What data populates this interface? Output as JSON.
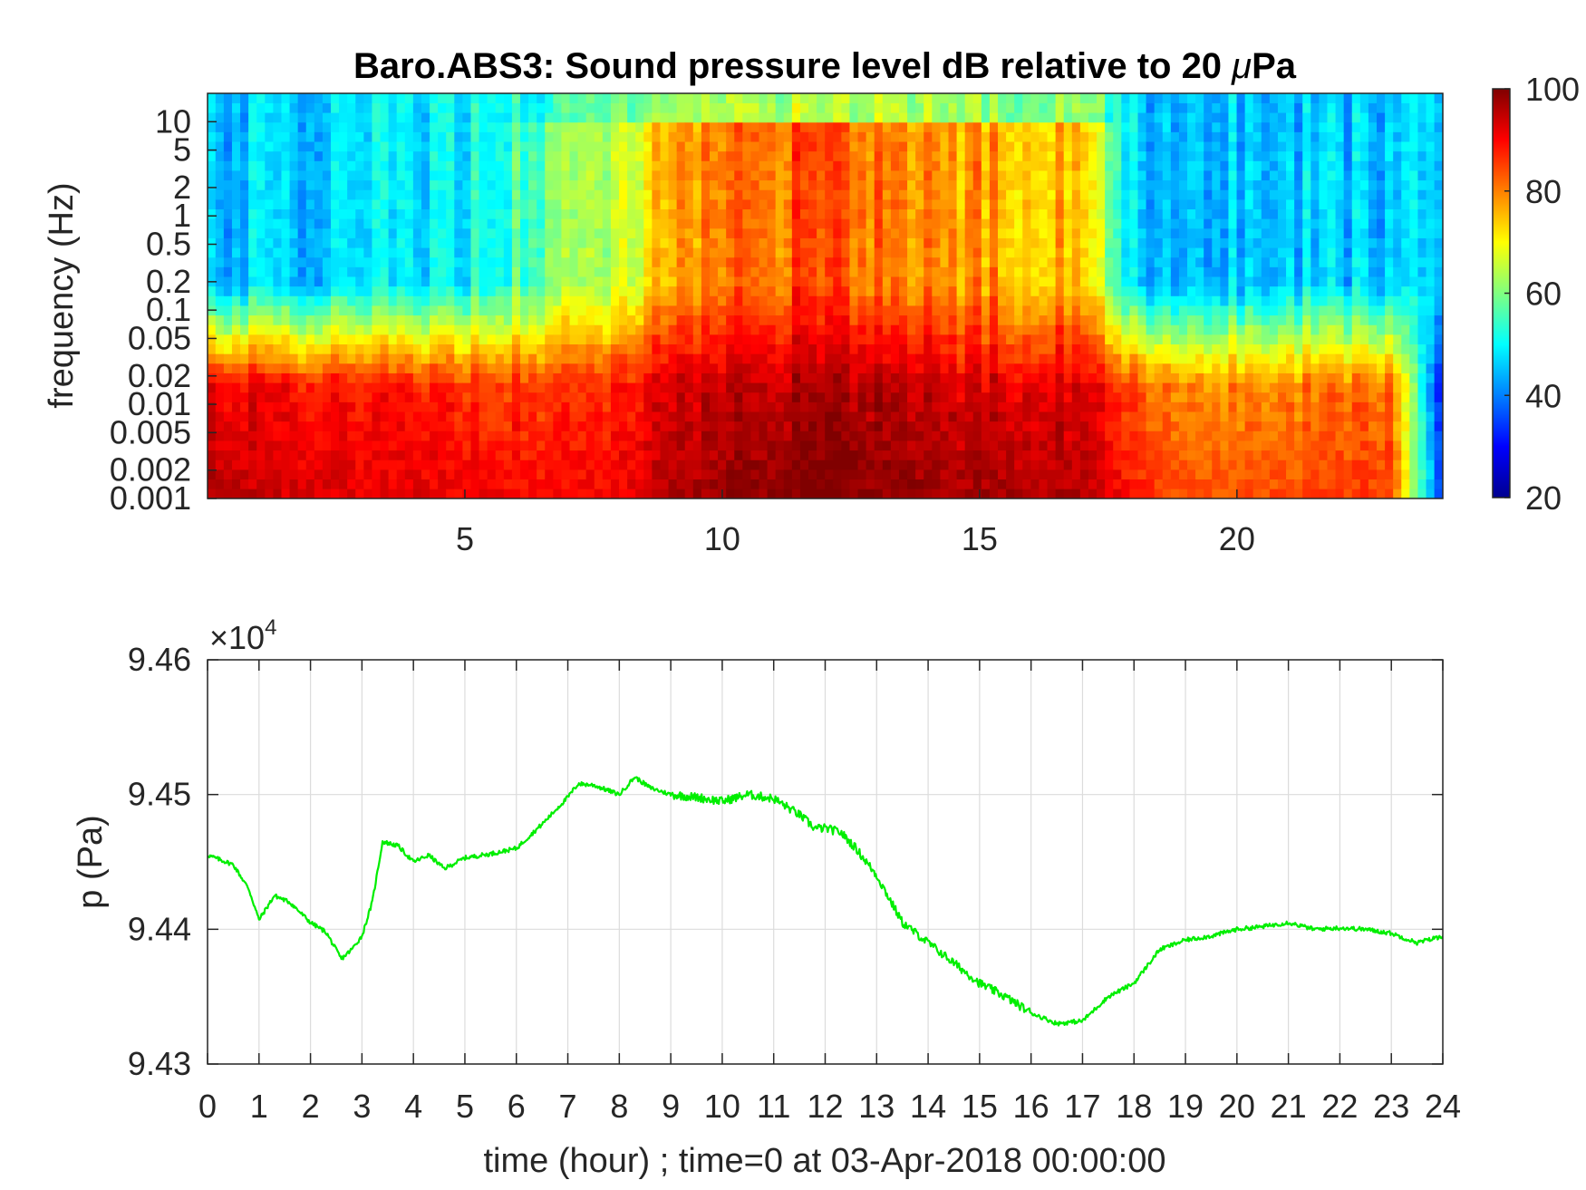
{
  "chart_data": [
    {
      "type": "heatmap",
      "title": "Baro.ABS3: Sound pressure level dB relative to 20 μPa",
      "title_main": "Baro.ABS3: Sound pressure level dB relative to 20 ",
      "title_unit_mu": "μ",
      "title_unit_rest": "Pa",
      "xlabel": "",
      "ylabel": "frequency (Hz)",
      "x_range": [
        0,
        24
      ],
      "x_ticks": [
        5,
        10,
        15,
        20
      ],
      "y_scale": "log",
      "y_range": [
        0.001,
        20
      ],
      "y_ticks": [
        0.001,
        0.002,
        0.005,
        0.01,
        0.02,
        0.05,
        0.1,
        0.2,
        0.5,
        1,
        2,
        5,
        10
      ],
      "colormap": "jet",
      "colorbar": {
        "range": [
          20,
          100
        ],
        "ticks": [
          20,
          40,
          60,
          80,
          100
        ]
      },
      "intensity_profile": {
        "hours": [
          0,
          1,
          2,
          3,
          4,
          5,
          6,
          7,
          8,
          9,
          10,
          11,
          12,
          13,
          14,
          15,
          16,
          17,
          18,
          19,
          20,
          21,
          22,
          23,
          24
        ],
        "low_freq_dB": [
          92,
          90,
          89,
          88,
          88,
          87,
          86,
          86,
          87,
          92,
          94,
          95,
          98,
          95,
          94,
          93,
          93,
          92,
          84,
          80,
          80,
          80,
          81,
          82,
          30
        ],
        "high_freq_dB": [
          46,
          46,
          46,
          47,
          48,
          50,
          55,
          62,
          64,
          75,
          80,
          82,
          86,
          80,
          78,
          78,
          76,
          74,
          46,
          46,
          46,
          46,
          46,
          46,
          46
        ]
      }
    },
    {
      "type": "line",
      "title": "",
      "xlabel": "time (hour) ; time=0 at 03-Apr-2018 00:00:00",
      "ylabel": "p (Pa)",
      "y_exponent_prefix": "×10",
      "y_exponent_power": "4",
      "xlim": [
        0,
        24
      ],
      "ylim": [
        94300,
        94600
      ],
      "x_ticks": [
        0,
        1,
        2,
        3,
        4,
        5,
        6,
        7,
        8,
        9,
        10,
        11,
        12,
        13,
        14,
        15,
        16,
        17,
        18,
        19,
        20,
        21,
        22,
        23,
        24
      ],
      "y_ticks": [
        94300,
        94400,
        94500,
        94600
      ],
      "y_tick_labels": [
        "9.43",
        "9.44",
        "9.45",
        "9.46"
      ],
      "grid": true,
      "line_color": "#00ee00",
      "x": [
        0,
        0.5,
        0.8,
        1.0,
        1.3,
        1.6,
        2.0,
        2.3,
        2.6,
        2.8,
        3.0,
        3.2,
        3.4,
        3.7,
        4.0,
        4.3,
        4.6,
        5.0,
        5.5,
        6.0,
        6.5,
        7.0,
        7.2,
        7.5,
        8.0,
        8.3,
        8.6,
        9.0,
        9.5,
        10.0,
        10.5,
        11.0,
        11.5,
        11.8,
        12.0,
        12.3,
        12.6,
        13.0,
        13.5,
        14.0,
        14.5,
        15.0,
        15.5,
        16.0,
        16.5,
        17.0,
        17.5,
        18.0,
        18.5,
        19.0,
        19.5,
        20.0,
        20.5,
        21.0,
        21.5,
        22.0,
        22.5,
        23.0,
        23.5,
        24.0
      ],
      "y": [
        94455,
        94448,
        94430,
        94407,
        94425,
        94420,
        94405,
        94398,
        94378,
        94385,
        94395,
        94420,
        94465,
        94462,
        94450,
        94455,
        94445,
        94453,
        94456,
        94460,
        94478,
        94498,
        94508,
        94507,
        94500,
        94513,
        94505,
        94500,
        94498,
        94495,
        94500,
        94497,
        94485,
        94475,
        94475,
        94472,
        94460,
        94440,
        94405,
        94390,
        94375,
        94360,
        94350,
        94338,
        94330,
        94332,
        94350,
        94360,
        94385,
        94392,
        94395,
        94400,
        94402,
        94405,
        94400,
        94401,
        94400,
        94397,
        94390,
        94395
      ]
    }
  ]
}
